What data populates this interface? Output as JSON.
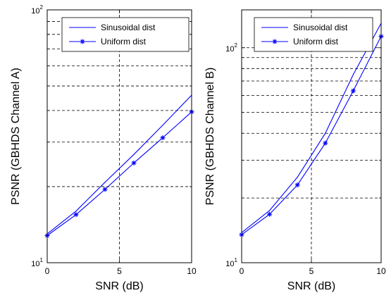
{
  "chart_data": [
    {
      "type": "line",
      "xlabel": "SNR (dB)",
      "ylabel": "PSNR (GBHDS Channel A)",
      "x": [
        0,
        2,
        4,
        6,
        8,
        10
      ],
      "xlim": [
        0,
        10
      ],
      "xticks": [
        "0",
        "5",
        "10"
      ],
      "ylim": [
        10,
        100
      ],
      "yscale": "log",
      "yticks": [
        {
          "base": "10",
          "exp": "1"
        },
        {
          "base": "10",
          "exp": "2"
        }
      ],
      "grid": "dashed",
      "legend_position": "top-right",
      "series": [
        {
          "name": "Sinusoidal dist",
          "values": [
            13.0,
            16.0,
            20.8,
            26.8,
            35.0,
            46.0
          ],
          "marker": "none",
          "color": "#0000ff"
        },
        {
          "name": "Uniform dist",
          "values": [
            12.8,
            15.5,
            19.5,
            24.8,
            31.2,
            39.5
          ],
          "marker": "star",
          "color": "#0000ff"
        }
      ]
    },
    {
      "type": "line",
      "xlabel": "SNR (dB)",
      "ylabel": "PSNR (GBHDS Channel B)",
      "x": [
        0,
        2,
        4,
        6,
        8,
        10
      ],
      "xlim": [
        0,
        10
      ],
      "xticks": [
        "0",
        "5",
        "10"
      ],
      "ylim": [
        10,
        150
      ],
      "yscale": "log",
      "yticks": [
        {
          "base": "10",
          "exp": "1"
        },
        {
          "base": "10",
          "exp": "2"
        }
      ],
      "grid": "dashed",
      "legend_position": "top-right",
      "series": [
        {
          "name": "Sinusoidal dist",
          "values": [
            13.8,
            17.5,
            25.0,
            40.0,
            75.0,
            130.0
          ],
          "marker": "none",
          "color": "#0000ff"
        },
        {
          "name": "Uniform dist",
          "values": [
            13.5,
            16.8,
            23.0,
            36.0,
            63.0,
            113.0
          ],
          "marker": "star",
          "color": "#0000ff"
        }
      ]
    }
  ]
}
